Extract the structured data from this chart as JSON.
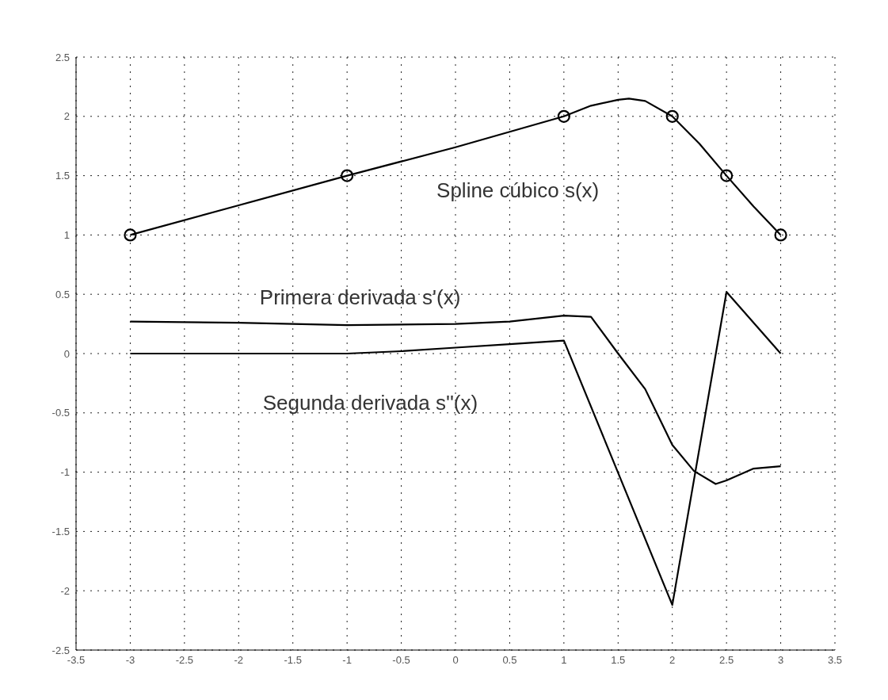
{
  "chart_data": {
    "type": "line",
    "xlim": [
      -3.5,
      3.5
    ],
    "xticks": [
      -3.5,
      -3,
      -2.5,
      -2,
      -1.5,
      -1,
      -0.5,
      0,
      0.5,
      1,
      1.5,
      2,
      2.5,
      3,
      3.5
    ],
    "ylim": [
      -2.5,
      2.5
    ],
    "yticks": [
      -2.5,
      -2,
      -1.5,
      -1,
      -0.5,
      0,
      0.5,
      1,
      1.5,
      2,
      2.5
    ],
    "grid": true,
    "line_style": "solid",
    "series": [
      {
        "name": "Spline cúbico s(x)",
        "color": "#000000",
        "marker": "none",
        "x": [
          -3,
          -2,
          -1,
          0,
          1,
          1.25,
          1.5,
          1.6,
          1.75,
          2,
          2.25,
          2.5,
          2.75,
          3
        ],
        "values": [
          1,
          1.25,
          1.5,
          1.74,
          2,
          2.09,
          2.14,
          2.15,
          2.13,
          2,
          1.77,
          1.5,
          1.24,
          1
        ]
      },
      {
        "type": "scatter",
        "color": "#000000",
        "marker": "circle",
        "x": [
          -3,
          -1,
          1,
          2,
          2.5,
          3
        ],
        "values": [
          1,
          1.5,
          2,
          2,
          1.5,
          1
        ]
      },
      {
        "name": "Primera derivada s'(x)",
        "color": "#000000",
        "marker": "none",
        "x": [
          -3,
          -2,
          -1,
          0,
          0.5,
          1,
          1.25,
          1.5,
          1.75,
          2,
          2.2,
          2.4,
          2.5,
          2.75,
          3
        ],
        "values": [
          0.27,
          0.26,
          0.24,
          0.25,
          0.27,
          0.32,
          0.31,
          0.0,
          -0.3,
          -0.77,
          -0.99,
          -1.1,
          -1.07,
          -0.97,
          -0.95
        ]
      },
      {
        "name": "Segunda derivada s''(x)",
        "color": "#000000",
        "marker": "none",
        "x": [
          -3,
          -2,
          -1,
          -0.5,
          0,
          0.5,
          1,
          2,
          2.5,
          3
        ],
        "values": [
          0,
          0,
          0,
          0.02,
          0.05,
          0.08,
          0.11,
          -2.12,
          0.52,
          0
        ]
      }
    ]
  }
}
